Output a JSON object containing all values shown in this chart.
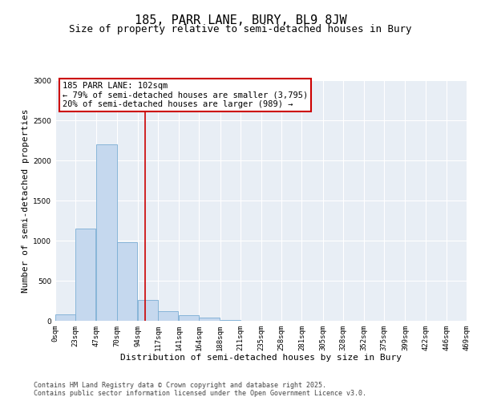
{
  "title": "185, PARR LANE, BURY, BL9 8JW",
  "subtitle": "Size of property relative to semi-detached houses in Bury",
  "xlabel": "Distribution of semi-detached houses by size in Bury",
  "ylabel": "Number of semi-detached properties",
  "bin_labels": [
    "0sqm",
    "23sqm",
    "47sqm",
    "70sqm",
    "94sqm",
    "117sqm",
    "141sqm",
    "164sqm",
    "188sqm",
    "211sqm",
    "235sqm",
    "258sqm",
    "281sqm",
    "305sqm",
    "328sqm",
    "352sqm",
    "375sqm",
    "399sqm",
    "422sqm",
    "446sqm",
    "469sqm"
  ],
  "bin_edges": [
    0,
    23,
    47,
    70,
    94,
    117,
    141,
    164,
    188,
    211,
    235,
    258,
    281,
    305,
    328,
    352,
    375,
    399,
    422,
    446,
    469
  ],
  "bar_values": [
    80,
    1150,
    2200,
    980,
    265,
    125,
    70,
    40,
    10,
    5,
    3,
    2,
    1,
    1,
    1,
    0,
    0,
    0,
    0,
    0
  ],
  "bar_color": "#c5d8ee",
  "bar_edge_color": "#7aadd4",
  "vline_x": 102,
  "vline_color": "#cc0000",
  "annotation_text": "185 PARR LANE: 102sqm\n← 79% of semi-detached houses are smaller (3,795)\n20% of semi-detached houses are larger (989) →",
  "annotation_box_color": "#cc0000",
  "ylim": [
    0,
    3000
  ],
  "yticks": [
    0,
    500,
    1000,
    1500,
    2000,
    2500,
    3000
  ],
  "background_color": "#ffffff",
  "plot_bg_color": "#e8eef5",
  "grid_color": "#ffffff",
  "footer_text": "Contains HM Land Registry data © Crown copyright and database right 2025.\nContains public sector information licensed under the Open Government Licence v3.0.",
  "title_fontsize": 11,
  "subtitle_fontsize": 9,
  "axis_label_fontsize": 8,
  "tick_fontsize": 6.5,
  "footer_fontsize": 6,
  "annot_fontsize": 7.5
}
